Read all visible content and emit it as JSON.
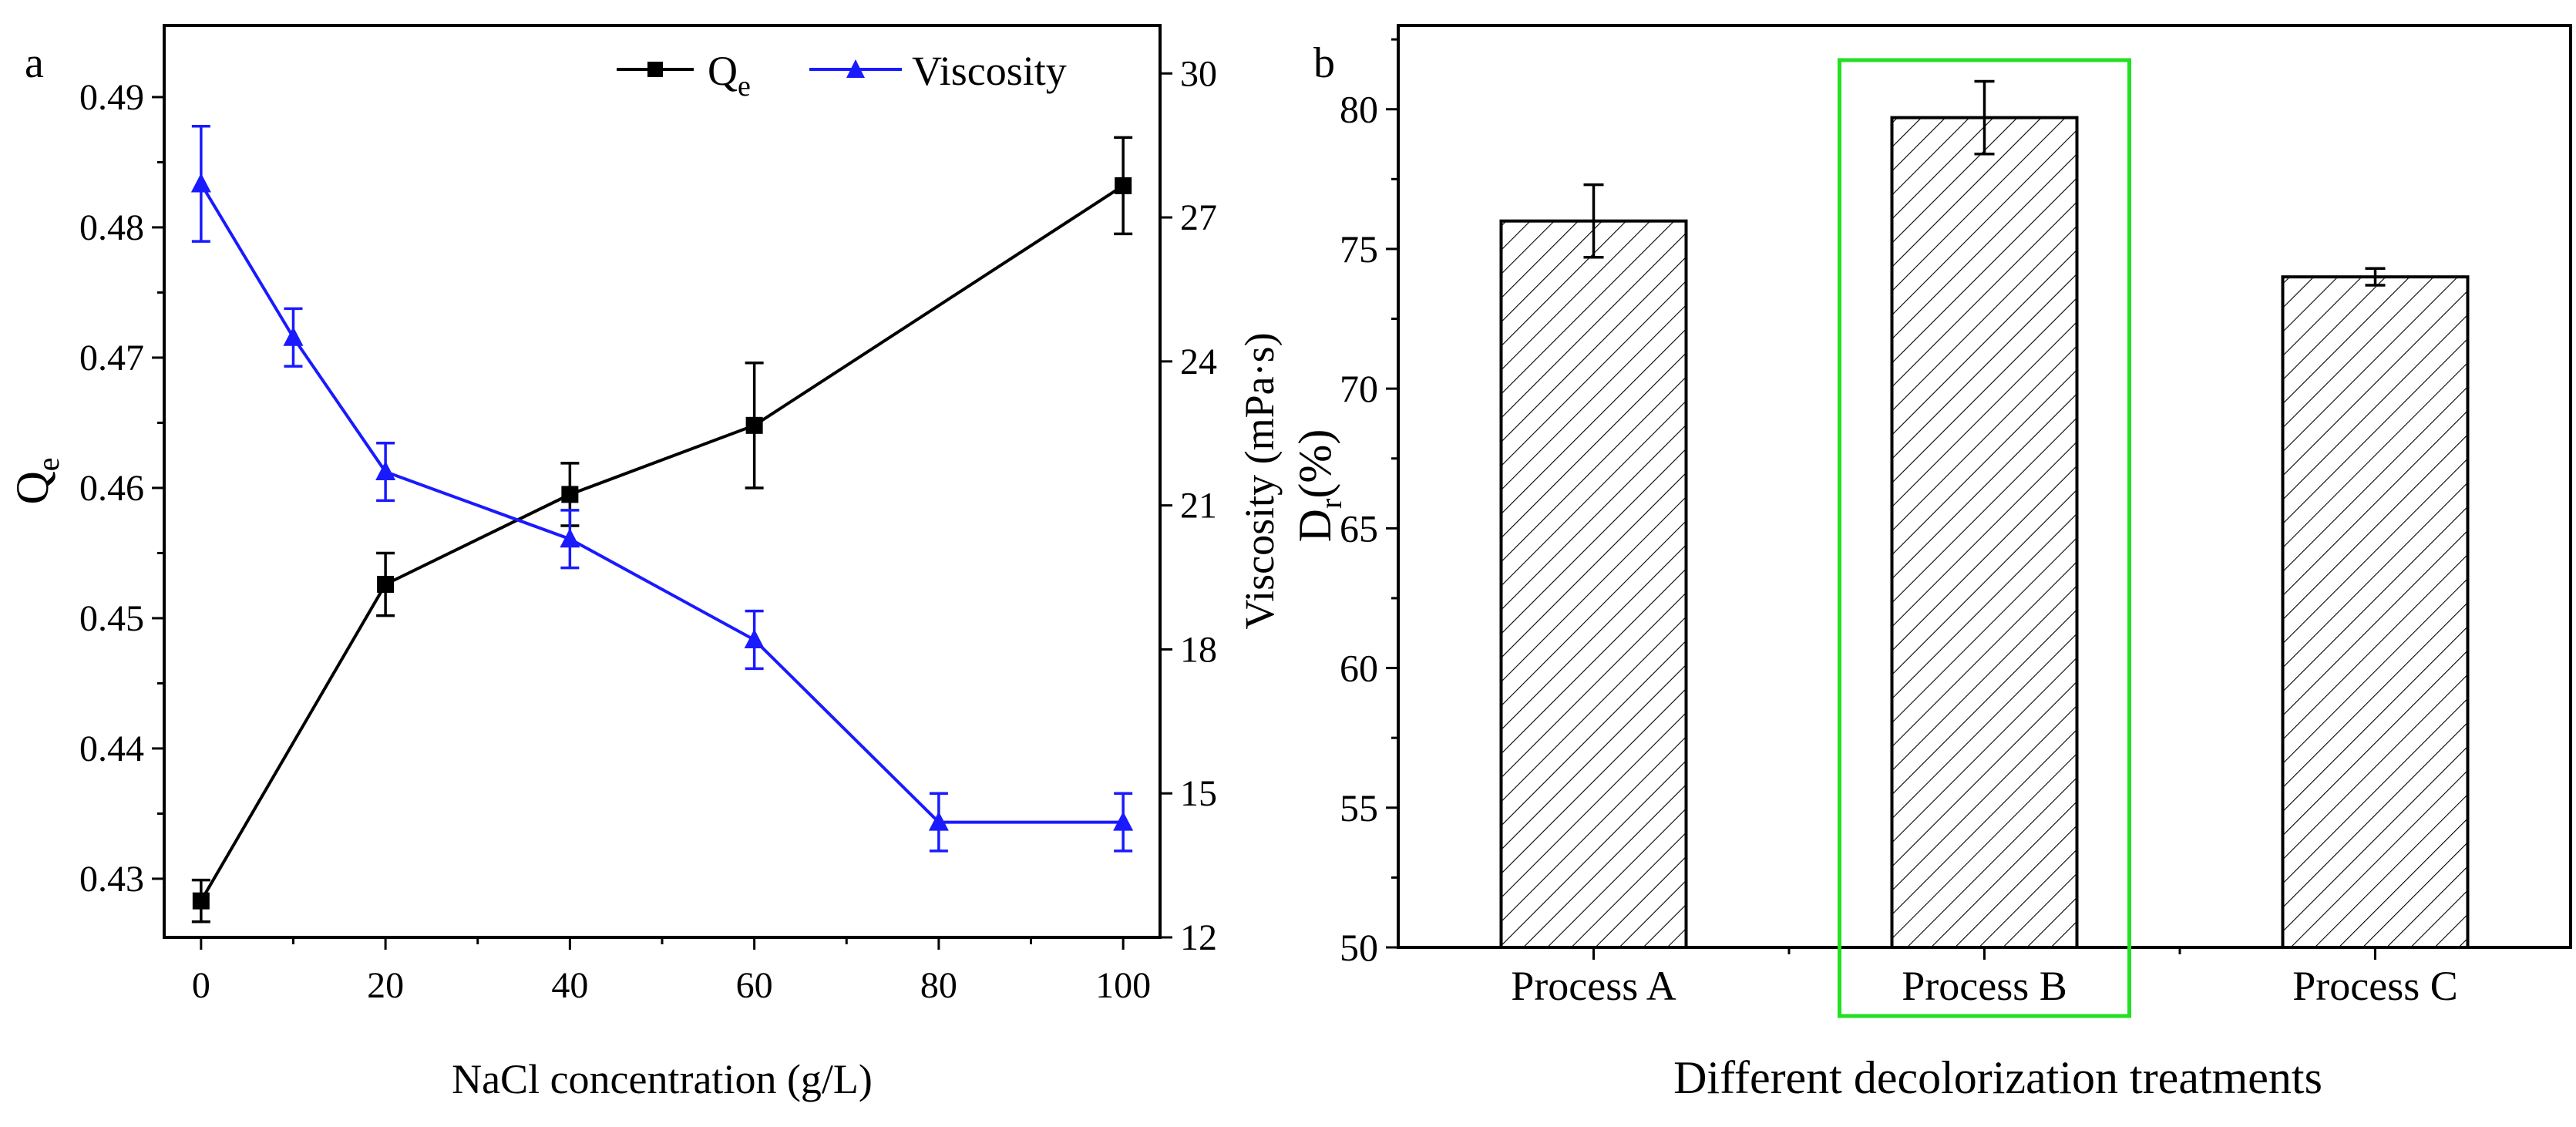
{
  "chart_data": [
    {
      "panel": "a",
      "type": "line",
      "xlabel": "NaCl concentration (g/L)",
      "ylabel_left_base": "Q",
      "ylabel_left_sub": "e",
      "ylabel_right": "Viscosity (mPa·s)",
      "xlim": [
        -4,
        104
      ],
      "ylim_left": [
        0.4255,
        0.4955
      ],
      "ylim_right": [
        12,
        31
      ],
      "x_ticks": [
        0,
        20,
        40,
        60,
        80,
        100
      ],
      "y_left_ticks": [
        0.43,
        0.44,
        0.45,
        0.46,
        0.47,
        0.48,
        0.49
      ],
      "y_right_ticks": [
        12,
        15,
        18,
        21,
        24,
        27,
        30
      ],
      "series": [
        {
          "name": "Qe",
          "legend_base": "Q",
          "legend_sub": "e",
          "axis": "left",
          "color": "#000000",
          "marker": "square",
          "x": [
            0,
            20,
            40,
            60,
            100
          ],
          "values": [
            0.4283,
            0.4526,
            0.4595,
            0.4648,
            0.4832
          ],
          "errors": [
            0.0016,
            0.0024,
            0.0024,
            0.0048,
            0.0037
          ]
        },
        {
          "name": "Viscosity",
          "legend_base": "Viscosity",
          "legend_sub": "",
          "axis": "right",
          "color": "#1a1aff",
          "marker": "triangle",
          "x": [
            0,
            10,
            20,
            40,
            60,
            80,
            100
          ],
          "values": [
            27.7,
            24.5,
            21.7,
            20.3,
            18.2,
            14.4,
            14.4
          ],
          "errors": [
            1.2,
            0.6,
            0.6,
            0.6,
            0.6,
            0.6,
            0.6
          ]
        }
      ]
    },
    {
      "panel": "b",
      "type": "bar",
      "xlabel": "Different decolorization treatments",
      "ylabel_base": "D",
      "ylabel_sub": "r",
      "ylabel_tail": "(%)",
      "ylim": [
        50,
        83
      ],
      "y_ticks": [
        50,
        55,
        60,
        65,
        70,
        75,
        80
      ],
      "categories": [
        "Process A",
        "Process B",
        "Process C"
      ],
      "values": [
        76.0,
        79.7,
        74.0
      ],
      "errors": [
        1.3,
        1.3,
        0.3
      ],
      "bar_fill": "hatched",
      "highlight_category": "Process B",
      "highlight_color": "#22e022"
    }
  ]
}
